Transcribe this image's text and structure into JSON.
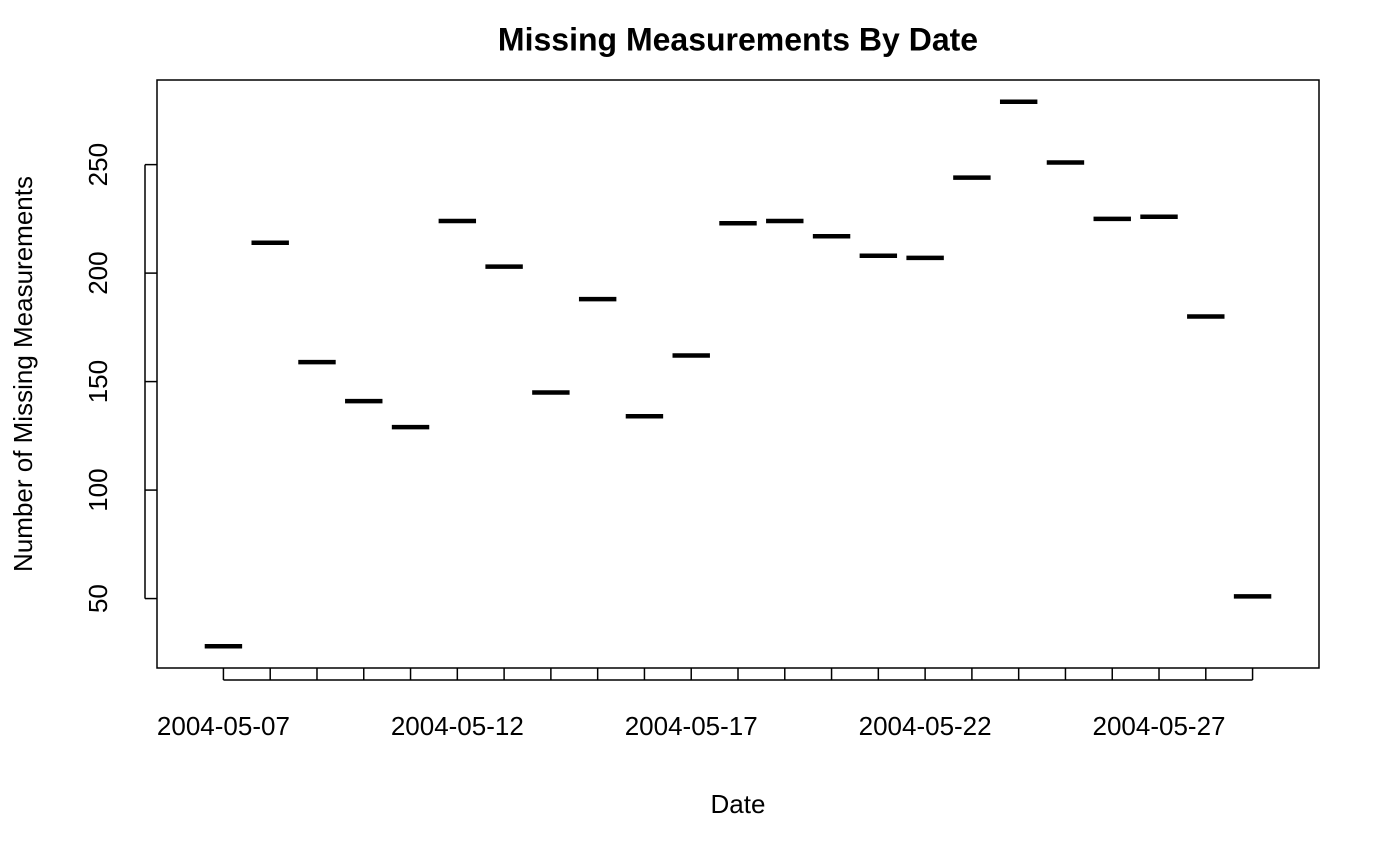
{
  "chart_data": {
    "type": "segment",
    "title": "Missing Measurements By Date",
    "x_label": "Date",
    "y_label": "Number of Missing Measurements",
    "categories": [
      "2004-05-07",
      null,
      null,
      null,
      null,
      "2004-05-12",
      null,
      null,
      null,
      null,
      "2004-05-17",
      null,
      null,
      null,
      null,
      "2004-05-22",
      null,
      null,
      null,
      null,
      "2004-05-27",
      null,
      null
    ],
    "values": [
      28,
      214,
      159,
      141,
      129,
      224,
      203,
      145,
      188,
      134,
      162,
      223,
      224,
      217,
      208,
      207,
      244,
      279,
      251,
      225,
      226,
      180,
      51
    ],
    "color": "#000000",
    "ylim": [
      18,
      289
    ],
    "yticks": [
      50,
      100,
      150,
      200,
      250
    ]
  }
}
